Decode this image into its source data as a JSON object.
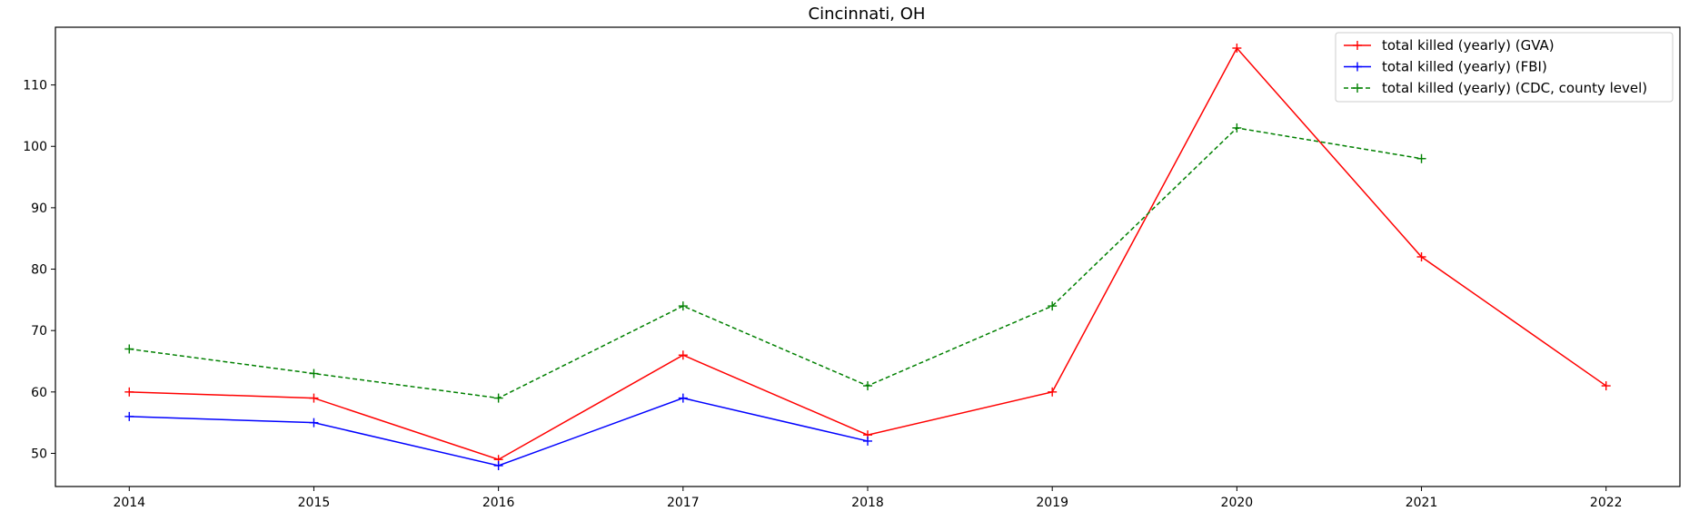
{
  "chart_data": {
    "type": "line",
    "title": "Cincinnati, OH",
    "xlabel": "",
    "ylabel": "",
    "xlim": [
      2013.6,
      2022.4
    ],
    "ylim": [
      44.6,
      119.4
    ],
    "x_ticks": [
      2014,
      2015,
      2016,
      2017,
      2018,
      2019,
      2020,
      2021,
      2022
    ],
    "y_ticks": [
      50,
      60,
      70,
      80,
      90,
      100,
      110
    ],
    "grid": false,
    "legend_position": "top-right",
    "series": [
      {
        "name": "total killed (yearly) (GVA)",
        "color": "#ff0000",
        "line_style": "solid",
        "marker": "plus",
        "x": [
          2014,
          2015,
          2016,
          2017,
          2018,
          2019,
          2020,
          2021,
          2022
        ],
        "y": [
          60,
          59,
          49,
          66,
          53,
          60,
          116,
          82,
          61
        ]
      },
      {
        "name": "total killed (yearly) (FBI)",
        "color": "#0000ff",
        "line_style": "solid",
        "marker": "plus",
        "x": [
          2014,
          2015,
          2016,
          2017,
          2018
        ],
        "y": [
          56,
          55,
          48,
          59,
          52
        ]
      },
      {
        "name": "total killed (yearly) (CDC, county level)",
        "color": "#008000",
        "line_style": "dashed",
        "marker": "plus",
        "x": [
          2014,
          2015,
          2016,
          2017,
          2018,
          2019,
          2020,
          2021
        ],
        "y": [
          67,
          63,
          59,
          74,
          61,
          74,
          103,
          98
        ]
      }
    ]
  }
}
